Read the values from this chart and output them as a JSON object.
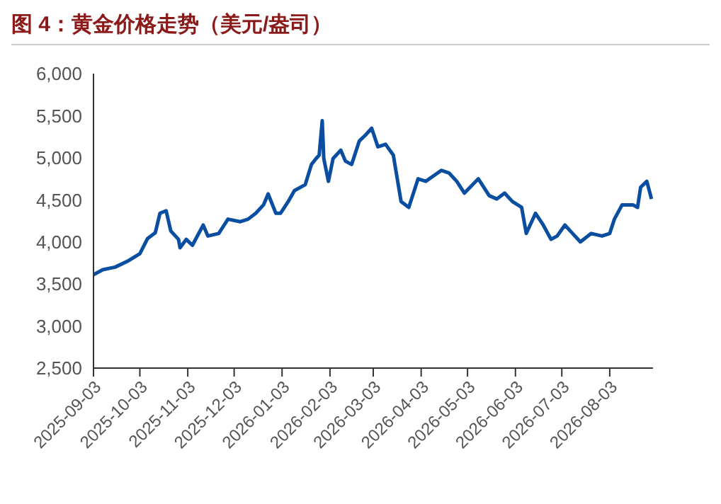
{
  "chart_data": {
    "type": "line",
    "title": "图 4：黄金价格走势（美元/盎司）",
    "series": [
      {
        "color": "#0a4ea2",
        "x": [
          "2025-09-03",
          "2025-09-09",
          "2025-09-17",
          "2025-09-25",
          "2025-10-03",
          "2025-10-08",
          "2025-10-13",
          "2025-10-16",
          "2025-10-20",
          "2025-10-23",
          "2025-10-28",
          "2025-10-29",
          "2025-11-02",
          "2025-11-06",
          "2025-11-13",
          "2025-11-16",
          "2025-11-23",
          "2025-11-29",
          "2025-12-07",
          "2025-12-12",
          "2025-12-17",
          "2025-12-22",
          "2025-12-25",
          "2025-12-30",
          "2026-01-02",
          "2026-01-07",
          "2026-01-11",
          "2026-01-18",
          "2026-01-22",
          "2026-01-25",
          "2026-01-27",
          "2026-01-29",
          "2026-01-30",
          "2026-02-02",
          "2026-02-05",
          "2026-02-10",
          "2026-02-13",
          "2026-02-17",
          "2026-02-22",
          "2026-02-26",
          "2026-03-02",
          "2026-03-06",
          "2026-03-11",
          "2026-03-16",
          "2026-03-21",
          "2026-03-26",
          "2026-04-01",
          "2026-04-06",
          "2026-04-16",
          "2026-04-21",
          "2026-04-26",
          "2026-05-01",
          "2026-05-10",
          "2026-05-17",
          "2026-05-22",
          "2026-05-27",
          "2026-06-01",
          "2026-06-07",
          "2026-06-10",
          "2026-06-16",
          "2026-06-21",
          "2026-06-26",
          "2026-06-30",
          "2026-07-05",
          "2026-07-10",
          "2026-07-15",
          "2026-07-22",
          "2026-07-29",
          "2026-08-03",
          "2026-08-06",
          "2026-08-11",
          "2026-08-18",
          "2026-08-21",
          "2026-08-23",
          "2026-08-27",
          "2026-08-30"
        ],
        "values": [
          3610,
          3670,
          3700,
          3770,
          3860,
          4040,
          4110,
          4340,
          4370,
          4130,
          4030,
          3930,
          4030,
          3960,
          4200,
          4070,
          4100,
          4270,
          4240,
          4270,
          4340,
          4440,
          4570,
          4340,
          4340,
          4480,
          4610,
          4680,
          4920,
          4990,
          5030,
          5440,
          4990,
          4720,
          4990,
          5090,
          4960,
          4920,
          5200,
          5270,
          5350,
          5130,
          5160,
          5030,
          4480,
          4410,
          4750,
          4720,
          4850,
          4820,
          4720,
          4580,
          4750,
          4550,
          4510,
          4580,
          4480,
          4410,
          4100,
          4340,
          4200,
          4030,
          4070,
          4200,
          4100,
          4000,
          4100,
          4070,
          4100,
          4270,
          4440,
          4440,
          4410,
          4650,
          4720,
          4510
        ]
      }
    ],
    "xlim": [
      "2025-09-03",
      "2026-08-31"
    ],
    "xticks": [
      "2025-09-03",
      "2025-10-03",
      "2025-11-03",
      "2025-12-03",
      "2026-01-03",
      "2026-02-03",
      "2026-03-03",
      "2026-04-03",
      "2026-05-03",
      "2026-06-03",
      "2026-07-03",
      "2026-08-03"
    ],
    "ylim": [
      2500,
      6000
    ],
    "yticks": [
      {
        "value": 2500,
        "label": "2,500"
      },
      {
        "value": 3000,
        "label": "3,000"
      },
      {
        "value": 3500,
        "label": "3,500"
      },
      {
        "value": 4000,
        "label": "4,000"
      },
      {
        "value": 4500,
        "label": "4,500"
      },
      {
        "value": 5000,
        "label": "5,000"
      },
      {
        "value": 5500,
        "label": "5,500"
      },
      {
        "value": 6000,
        "label": "6,000"
      }
    ],
    "grid": false,
    "legend": false,
    "marker": "none",
    "line_style": "solid"
  }
}
